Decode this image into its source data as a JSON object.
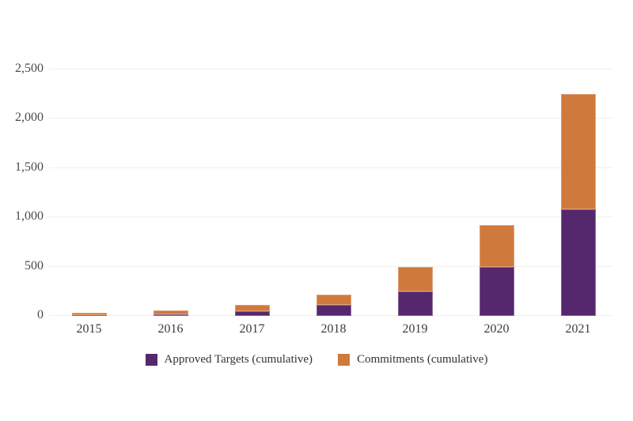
{
  "chart_data": {
    "type": "bar",
    "stacked": true,
    "categories": [
      "2015",
      "2016",
      "2017",
      "2018",
      "2019",
      "2020",
      "2021"
    ],
    "series": [
      {
        "name": "Approved Targets (cumulative)",
        "color": "#55276D",
        "values": [
          5,
          15,
          50,
          115,
          250,
          495,
          1080
        ]
      },
      {
        "name": "Commitments (cumulative)",
        "color": "#D0793C",
        "values": [
          25,
          45,
          60,
          100,
          245,
          425,
          1170
        ]
      }
    ],
    "stack_totals": [
      30,
      60,
      110,
      215,
      495,
      920,
      2250
    ],
    "ylim": [
      0,
      2500
    ],
    "yticks": [
      0,
      500,
      1000,
      1500,
      2000,
      2500
    ],
    "ytick_labels": [
      "0",
      "500",
      "1,000",
      "1,500",
      "2,000",
      "2,500"
    ],
    "xlabel": "",
    "ylabel": "",
    "grid": true,
    "gridline_color": "#f0f0f0",
    "legend_position": "bottom"
  },
  "legend": {
    "items": [
      {
        "label": "Approved Targets (cumulative)",
        "color": "#55276D"
      },
      {
        "label": "Commitments (cumulative)",
        "color": "#D0793C"
      }
    ]
  },
  "colors": {
    "approved_purple": "#55276D",
    "commitments_orange": "#D0793C",
    "background": "#ffffff",
    "gridline": "#f0f0f0",
    "axis_text": "#4a4a4a"
  }
}
